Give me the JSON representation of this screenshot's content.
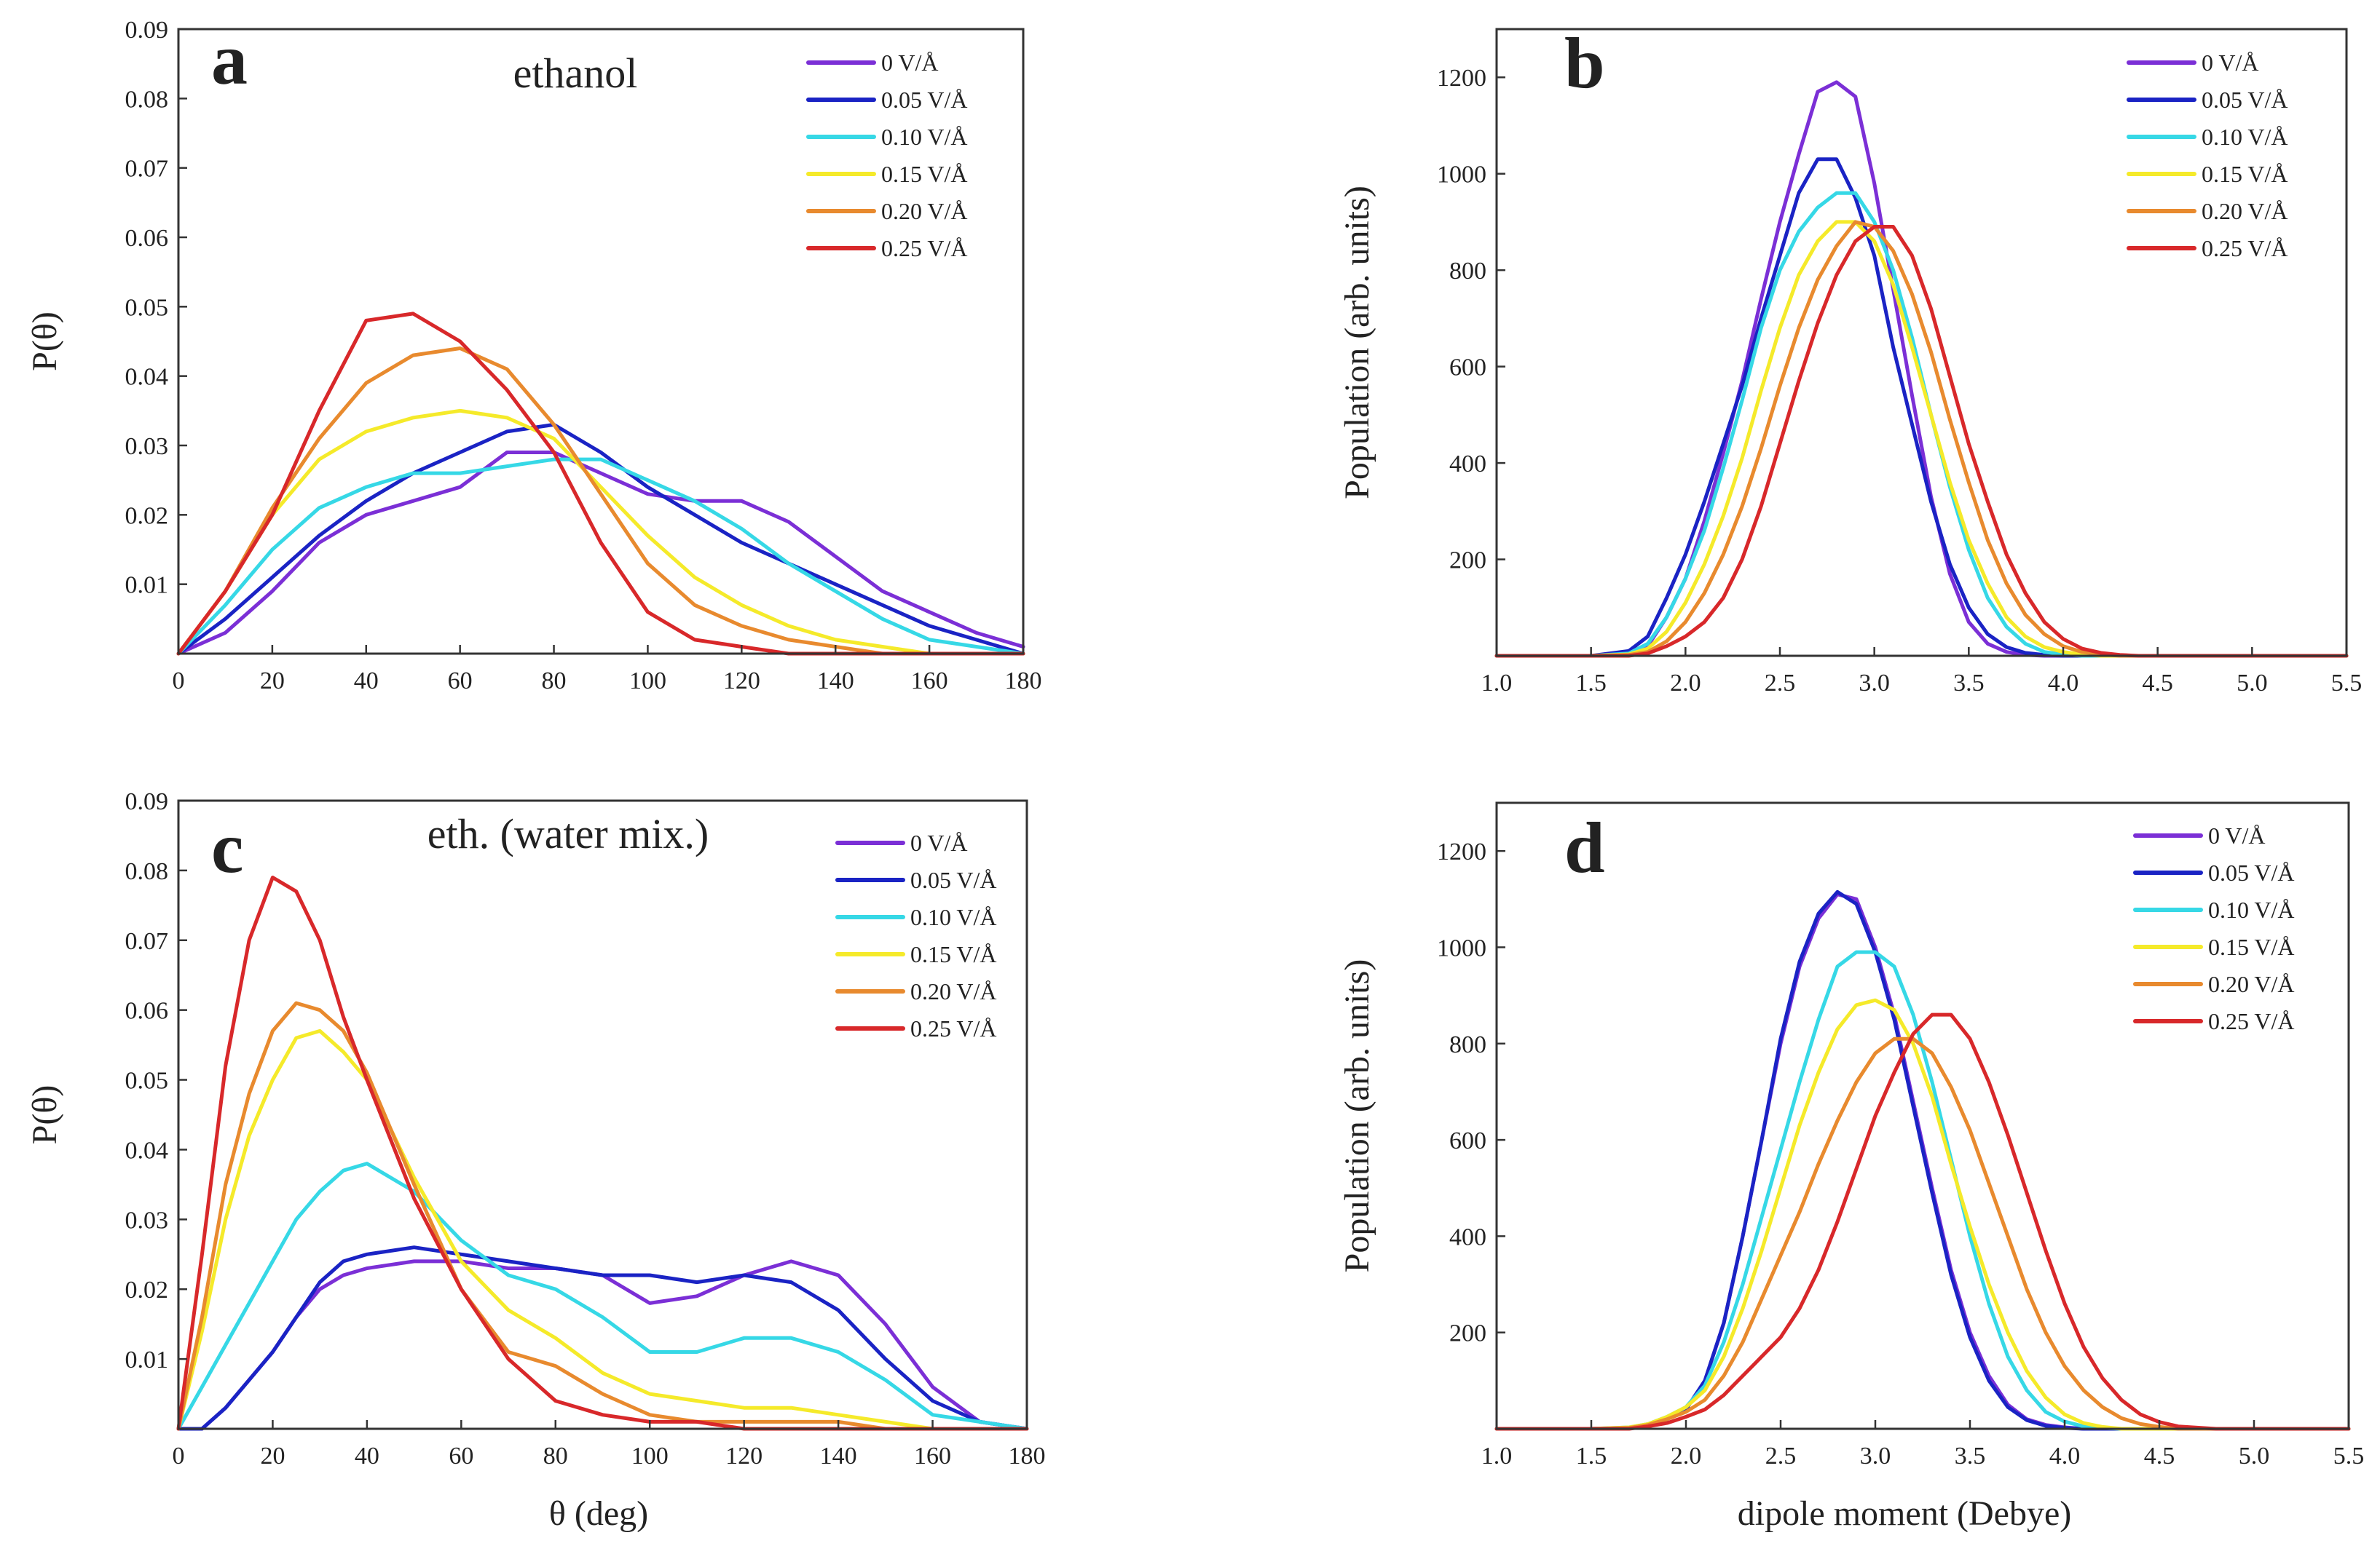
{
  "figure": {
    "xlabel_left": "θ (deg)",
    "xlabel_right": "dipole moment (Debye)"
  },
  "chart_data": [
    {
      "type": "line",
      "panel": "a",
      "title": "ethanol",
      "xlabel": "",
      "ylabel": "P(θ)",
      "xlim": [
        0,
        180
      ],
      "ylim": [
        0,
        0.09
      ],
      "xticks": [
        "0",
        "20",
        "40",
        "60",
        "80",
        "100",
        "120",
        "140",
        "160",
        "180"
      ],
      "yticks": [
        "0.01",
        "0.02",
        "0.03",
        "0.04",
        "0.05",
        "0.06",
        "0.07",
        "0.08",
        "0.09"
      ],
      "x": [
        0,
        10,
        20,
        30,
        40,
        50,
        60,
        70,
        80,
        90,
        100,
        110,
        120,
        130,
        140,
        150,
        160,
        170,
        180
      ],
      "series": [
        {
          "name": "0 V/Å",
          "color": "#7b2fd6",
          "values": [
            0,
            0.003,
            0.009,
            0.016,
            0.02,
            0.022,
            0.024,
            0.029,
            0.029,
            0.026,
            0.023,
            0.022,
            0.022,
            0.019,
            0.014,
            0.009,
            0.006,
            0.003,
            0.001
          ]
        },
        {
          "name": "0.05 V/Å",
          "color": "#1a23c4",
          "values": [
            0,
            0.005,
            0.011,
            0.017,
            0.022,
            0.026,
            0.029,
            0.032,
            0.033,
            0.029,
            0.024,
            0.02,
            0.016,
            0.013,
            0.01,
            0.007,
            0.004,
            0.002,
            0
          ]
        },
        {
          "name": "0.10 V/Å",
          "color": "#36d8e6",
          "values": [
            0,
            0.007,
            0.015,
            0.021,
            0.024,
            0.026,
            0.026,
            0.027,
            0.028,
            0.028,
            0.025,
            0.022,
            0.018,
            0.013,
            0.009,
            0.005,
            0.002,
            0.001,
            0
          ]
        },
        {
          "name": "0.15 V/Å",
          "color": "#f5ea2a",
          "values": [
            0,
            0.009,
            0.02,
            0.028,
            0.032,
            0.034,
            0.035,
            0.034,
            0.031,
            0.024,
            0.017,
            0.011,
            0.007,
            0.004,
            0.002,
            0.001,
            0,
            0,
            0
          ]
        },
        {
          "name": "0.20 V/Å",
          "color": "#e88a2e",
          "values": [
            0,
            0.009,
            0.021,
            0.031,
            0.039,
            0.043,
            0.044,
            0.041,
            0.033,
            0.023,
            0.013,
            0.007,
            0.004,
            0.002,
            0.001,
            0,
            0,
            0,
            0
          ]
        },
        {
          "name": "0.25 V/Å",
          "color": "#d8282a",
          "values": [
            0,
            0.009,
            0.02,
            0.035,
            0.048,
            0.049,
            0.045,
            0.038,
            0.029,
            0.016,
            0.006,
            0.002,
            0.001,
            0,
            0,
            0,
            0,
            0,
            0
          ]
        }
      ]
    },
    {
      "type": "line",
      "panel": "b",
      "title": "",
      "xlabel": "",
      "ylabel": "Population (arb. units)",
      "xlim": [
        1.0,
        5.5
      ],
      "ylim": [
        0,
        1300
      ],
      "xticks": [
        "1.0",
        "1.5",
        "2.0",
        "2.5",
        "3.0",
        "3.5",
        "4.0",
        "4.5",
        "5.0",
        "5.5"
      ],
      "yticks": [
        "200",
        "400",
        "600",
        "800",
        "1000",
        "1200"
      ],
      "x": [
        1.0,
        1.5,
        1.7,
        1.8,
        1.9,
        2.0,
        2.1,
        2.2,
        2.3,
        2.4,
        2.5,
        2.6,
        2.7,
        2.8,
        2.9,
        3.0,
        3.1,
        3.2,
        3.3,
        3.4,
        3.5,
        3.6,
        3.7,
        3.8,
        3.9,
        4.0,
        4.1,
        4.2,
        4.3,
        4.4,
        4.5,
        4.6,
        4.8,
        5.0,
        5.5
      ],
      "series": [
        {
          "name": "0 V/Å",
          "color": "#7b2fd6",
          "values": [
            0,
            0,
            5,
            20,
            80,
            160,
            280,
            420,
            570,
            740,
            900,
            1040,
            1170,
            1190,
            1160,
            980,
            760,
            540,
            330,
            170,
            70,
            25,
            8,
            2,
            0,
            0,
            0,
            0,
            0,
            0,
            0,
            0,
            0,
            0,
            0
          ]
        },
        {
          "name": "0.05 V/Å",
          "color": "#1a23c4",
          "values": [
            0,
            0,
            10,
            40,
            120,
            210,
            320,
            440,
            560,
            700,
            830,
            960,
            1030,
            1030,
            950,
            830,
            640,
            480,
            320,
            190,
            100,
            45,
            18,
            6,
            2,
            0,
            0,
            0,
            0,
            0,
            0,
            0,
            0,
            0,
            0
          ]
        },
        {
          "name": "0.10 V/Å",
          "color": "#36d8e6",
          "values": [
            0,
            0,
            5,
            25,
            80,
            160,
            260,
            390,
            530,
            680,
            800,
            880,
            930,
            960,
            960,
            900,
            800,
            660,
            500,
            350,
            220,
            120,
            60,
            25,
            8,
            3,
            0,
            0,
            0,
            0,
            0,
            0,
            0,
            0,
            0
          ]
        },
        {
          "name": "0.15 V/Å",
          "color": "#f5ea2a",
          "values": [
            0,
            0,
            3,
            15,
            50,
            110,
            190,
            290,
            410,
            550,
            680,
            790,
            860,
            900,
            900,
            860,
            770,
            640,
            500,
            360,
            240,
            150,
            80,
            40,
            18,
            8,
            3,
            0,
            0,
            0,
            0,
            0,
            0,
            0,
            0
          ]
        },
        {
          "name": "0.20 V/Å",
          "color": "#e88a2e",
          "values": [
            0,
            0,
            2,
            8,
            30,
            70,
            130,
            210,
            310,
            430,
            560,
            680,
            780,
            850,
            900,
            890,
            840,
            750,
            630,
            490,
            360,
            240,
            150,
            85,
            45,
            20,
            8,
            3,
            0,
            0,
            0,
            0,
            0,
            0,
            0
          ]
        },
        {
          "name": "0.25 V/Å",
          "color": "#d8282a",
          "values": [
            0,
            0,
            0,
            5,
            20,
            40,
            70,
            120,
            200,
            310,
            440,
            570,
            690,
            790,
            860,
            890,
            890,
            830,
            720,
            580,
            440,
            320,
            210,
            130,
            70,
            35,
            15,
            6,
            2,
            0,
            0,
            0,
            0,
            0,
            0
          ]
        }
      ]
    },
    {
      "type": "line",
      "panel": "c",
      "title": "eth. (water mix.)",
      "xlabel": "θ (deg)",
      "ylabel": "P(θ)",
      "xlim": [
        0,
        180
      ],
      "ylim": [
        0,
        0.09
      ],
      "xticks": [
        "0",
        "20",
        "40",
        "60",
        "80",
        "100",
        "120",
        "140",
        "160",
        "180"
      ],
      "yticks": [
        "0.01",
        "0.02",
        "0.03",
        "0.04",
        "0.05",
        "0.06",
        "0.07",
        "0.08",
        "0.09"
      ],
      "x": [
        0,
        5,
        10,
        15,
        20,
        25,
        30,
        35,
        40,
        50,
        60,
        70,
        80,
        90,
        100,
        110,
        120,
        130,
        140,
        150,
        160,
        170,
        180
      ],
      "series": [
        {
          "name": "0 V/Å",
          "color": "#7b2fd6",
          "values": [
            0,
            0,
            0.003,
            0.007,
            0.011,
            0.016,
            0.02,
            0.022,
            0.023,
            0.024,
            0.024,
            0.023,
            0.023,
            0.022,
            0.018,
            0.019,
            0.022,
            0.024,
            0.022,
            0.015,
            0.006,
            0.001,
            0
          ]
        },
        {
          "name": "0.05 V/Å",
          "color": "#1a23c4",
          "values": [
            0,
            0,
            0.003,
            0.007,
            0.011,
            0.016,
            0.021,
            0.024,
            0.025,
            0.026,
            0.025,
            0.024,
            0.023,
            0.022,
            0.022,
            0.021,
            0.022,
            0.021,
            0.017,
            0.01,
            0.004,
            0.001,
            0
          ]
        },
        {
          "name": "0.10 V/Å",
          "color": "#36d8e6",
          "values": [
            0,
            0.006,
            0.012,
            0.018,
            0.024,
            0.03,
            0.034,
            0.037,
            0.038,
            0.034,
            0.027,
            0.022,
            0.02,
            0.016,
            0.011,
            0.011,
            0.013,
            0.013,
            0.011,
            0.007,
            0.002,
            0.001,
            0
          ]
        },
        {
          "name": "0.15 V/Å",
          "color": "#f5ea2a",
          "values": [
            0,
            0.014,
            0.03,
            0.042,
            0.05,
            0.056,
            0.057,
            0.054,
            0.05,
            0.036,
            0.024,
            0.017,
            0.013,
            0.008,
            0.005,
            0.004,
            0.003,
            0.003,
            0.002,
            0.001,
            0,
            0,
            0
          ]
        },
        {
          "name": "0.20 V/Å",
          "color": "#e88a2e",
          "values": [
            0,
            0.016,
            0.035,
            0.048,
            0.057,
            0.061,
            0.06,
            0.057,
            0.051,
            0.035,
            0.02,
            0.011,
            0.009,
            0.005,
            0.002,
            0.001,
            0.001,
            0.001,
            0.001,
            0,
            0,
            0,
            0
          ]
        },
        {
          "name": "0.25 V/Å",
          "color": "#d8282a",
          "values": [
            0,
            0.025,
            0.052,
            0.07,
            0.079,
            0.077,
            0.07,
            0.059,
            0.05,
            0.033,
            0.02,
            0.01,
            0.004,
            0.002,
            0.001,
            0.001,
            0,
            0,
            0,
            0,
            0,
            0,
            0
          ]
        }
      ]
    },
    {
      "type": "line",
      "panel": "d",
      "title": "",
      "xlabel": "dipole moment (Debye)",
      "ylabel": "Population (arb. units)",
      "xlim": [
        1.0,
        5.5
      ],
      "ylim": [
        0,
        1300
      ],
      "xticks": [
        "1.0",
        "1.5",
        "2.0",
        "2.5",
        "3.0",
        "3.5",
        "4.0",
        "4.5",
        "5.0",
        "5.5"
      ],
      "yticks": [
        "200",
        "400",
        "600",
        "800",
        "1000",
        "1200"
      ],
      "x": [
        1.0,
        1.5,
        1.7,
        1.8,
        1.9,
        2.0,
        2.1,
        2.2,
        2.3,
        2.4,
        2.5,
        2.6,
        2.7,
        2.8,
        2.9,
        3.0,
        3.1,
        3.2,
        3.3,
        3.4,
        3.5,
        3.6,
        3.7,
        3.8,
        3.9,
        4.0,
        4.1,
        4.2,
        4.3,
        4.4,
        4.5,
        4.6,
        4.8,
        5.0,
        5.5
      ],
      "series": [
        {
          "name": "0 V/Å",
          "color": "#7b2fd6",
          "values": [
            0,
            0,
            2,
            8,
            20,
            40,
            100,
            220,
            400,
            600,
            800,
            960,
            1060,
            1110,
            1100,
            1000,
            860,
            680,
            500,
            330,
            200,
            110,
            50,
            20,
            8,
            3,
            0,
            0,
            0,
            0,
            0,
            0,
            0,
            0,
            0
          ]
        },
        {
          "name": "0.05 V/Å",
          "color": "#1a23c4",
          "values": [
            0,
            0,
            2,
            8,
            20,
            40,
            100,
            220,
            400,
            600,
            810,
            970,
            1070,
            1115,
            1090,
            990,
            850,
            670,
            490,
            320,
            190,
            100,
            45,
            18,
            6,
            2,
            0,
            0,
            0,
            0,
            0,
            0,
            0,
            0,
            0
          ]
        },
        {
          "name": "0.10 V/Å",
          "color": "#36d8e6",
          "values": [
            0,
            0,
            3,
            10,
            25,
            45,
            90,
            180,
            300,
            440,
            580,
            720,
            850,
            960,
            990,
            990,
            960,
            860,
            720,
            560,
            400,
            260,
            150,
            80,
            35,
            15,
            5,
            2,
            0,
            0,
            0,
            0,
            0,
            0,
            0
          ]
        },
        {
          "name": "0.15 V/Å",
          "color": "#f5ea2a",
          "values": [
            0,
            0,
            3,
            10,
            25,
            45,
            80,
            150,
            250,
            370,
            500,
            630,
            740,
            830,
            880,
            890,
            870,
            800,
            690,
            550,
            420,
            300,
            200,
            120,
            65,
            30,
            12,
            4,
            0,
            0,
            0,
            0,
            0,
            0,
            0
          ]
        },
        {
          "name": "0.20 V/Å",
          "color": "#e88a2e",
          "values": [
            0,
            0,
            2,
            8,
            20,
            35,
            60,
            110,
            180,
            270,
            360,
            450,
            550,
            640,
            720,
            780,
            810,
            810,
            780,
            710,
            620,
            510,
            400,
            290,
            200,
            130,
            80,
            45,
            22,
            10,
            4,
            0,
            0,
            0,
            0
          ]
        },
        {
          "name": "0.25 V/Å",
          "color": "#d8282a",
          "values": [
            0,
            0,
            0,
            5,
            12,
            25,
            40,
            70,
            110,
            150,
            190,
            250,
            330,
            430,
            540,
            650,
            740,
            820,
            860,
            860,
            810,
            720,
            610,
            490,
            370,
            260,
            170,
            105,
            60,
            30,
            14,
            5,
            0,
            0,
            0
          ]
        }
      ]
    }
  ]
}
